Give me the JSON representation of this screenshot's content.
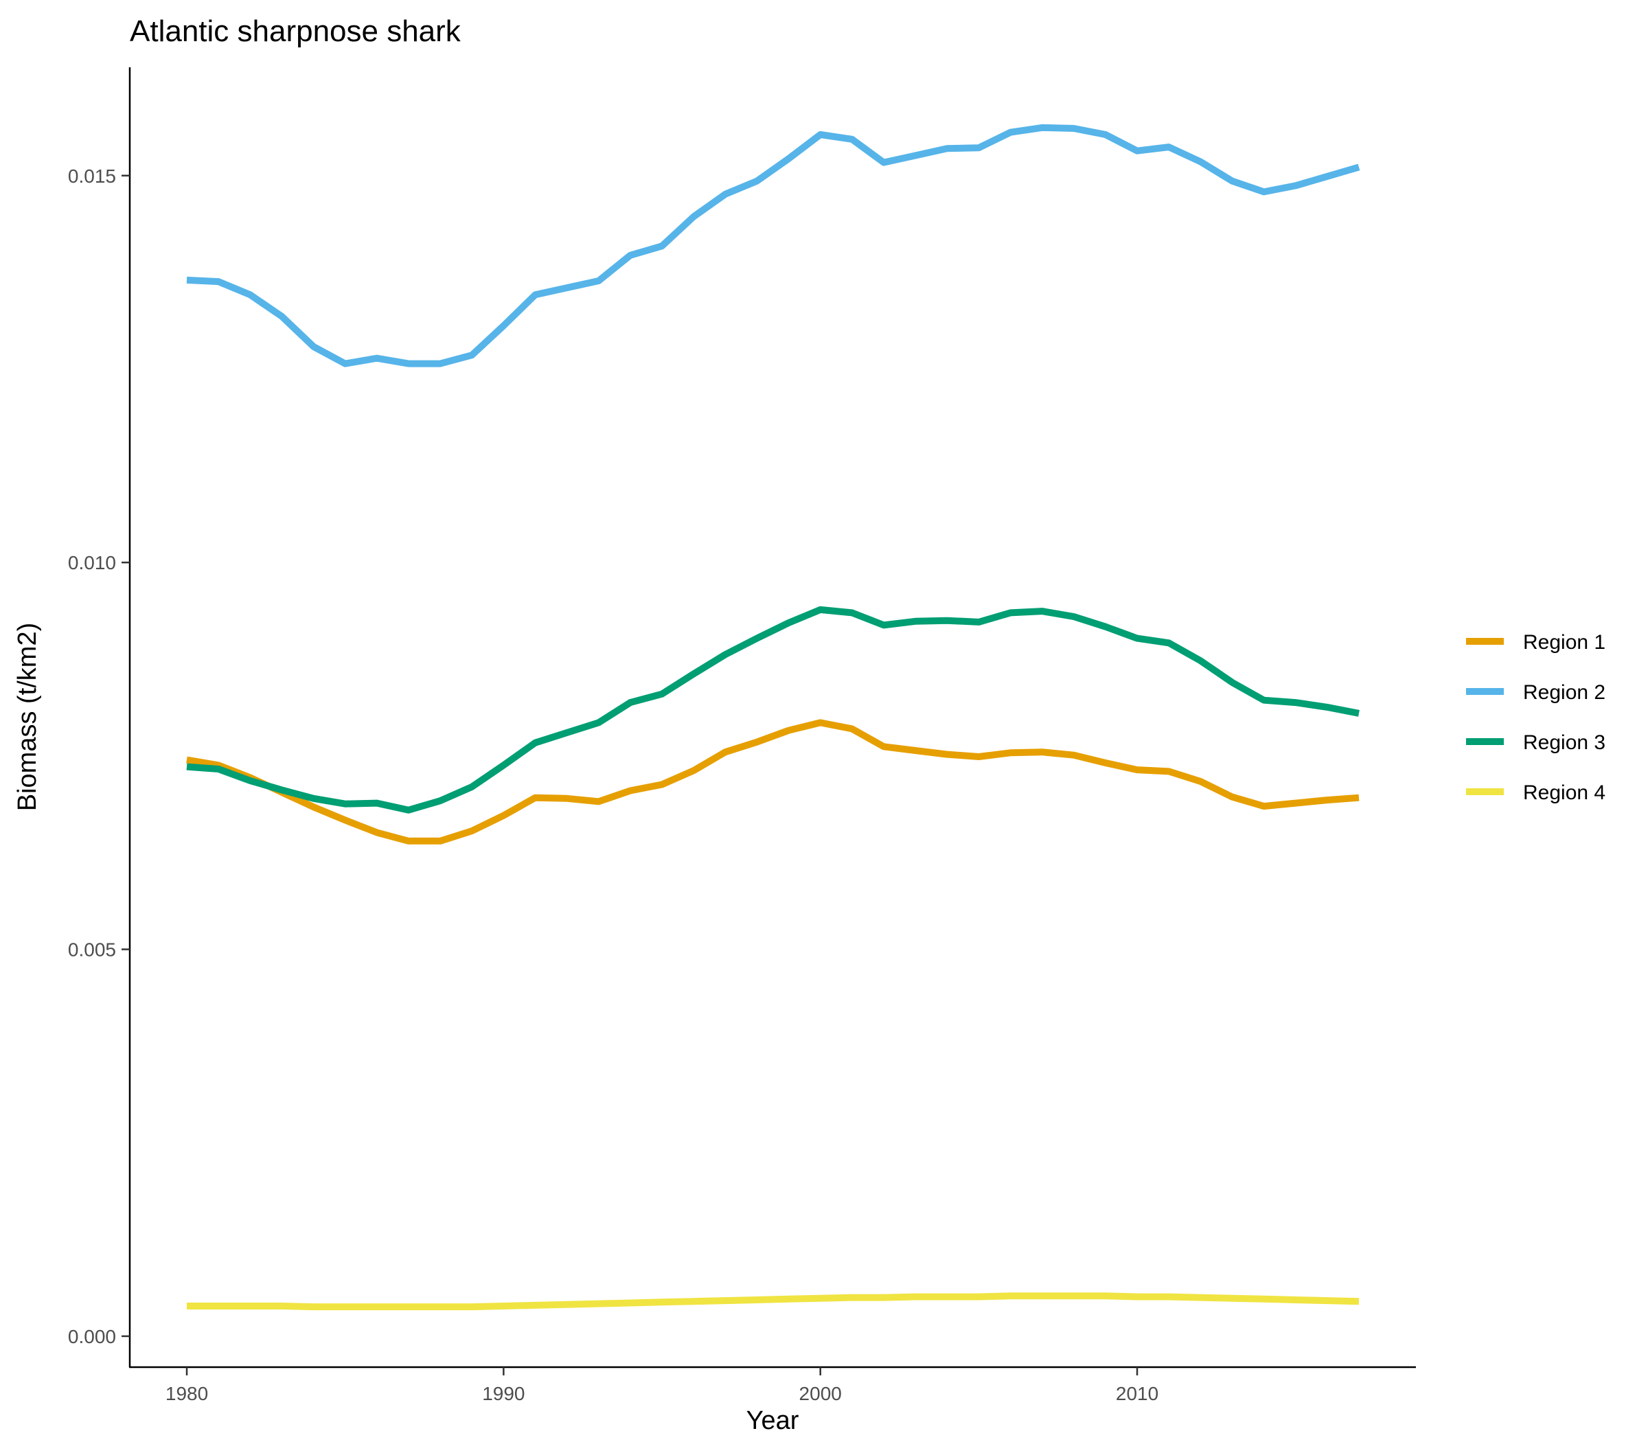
{
  "chart_data": {
    "type": "line",
    "title": "Atlantic sharpnose shark",
    "xlabel": "Year",
    "ylabel": "Biomass (t/km2)",
    "xlim": [
      1978.2,
      2018.8
    ],
    "ylim": [
      -0.0004,
      0.0164
    ],
    "x_ticks": [
      1980,
      1990,
      2000,
      2010
    ],
    "x_tick_labels": [
      "1980",
      "1990",
      "2000",
      "2010"
    ],
    "y_ticks": [
      0,
      0.005,
      0.01,
      0.015
    ],
    "y_tick_labels": [
      "0.000",
      "0.005",
      "0.010",
      "0.015"
    ],
    "grid": false,
    "legend_position": "right",
    "x": [
      1980,
      1981,
      1982,
      1983,
      1984,
      1985,
      1986,
      1987,
      1988,
      1989,
      1990,
      1991,
      1992,
      1993,
      1994,
      1995,
      1996,
      1997,
      1998,
      1999,
      2000,
      2001,
      2002,
      2003,
      2004,
      2005,
      2006,
      2007,
      2008,
      2009,
      2010,
      2011,
      2012,
      2013,
      2014,
      2015,
      2016,
      2017
    ],
    "series": [
      {
        "name": "Region 1",
        "color": "#E69F00",
        "values": [
          0.00745,
          0.00738,
          0.00722,
          0.00703,
          0.00684,
          0.00667,
          0.00651,
          0.0064,
          0.0064,
          0.00653,
          0.00673,
          0.00696,
          0.00695,
          0.00691,
          0.00705,
          0.00713,
          0.00731,
          0.00755,
          0.00768,
          0.00783,
          0.00793,
          0.00785,
          0.00762,
          0.00757,
          0.00752,
          0.00749,
          0.00754,
          0.00755,
          0.00751,
          0.00741,
          0.00732,
          0.0073,
          0.00717,
          0.00697,
          0.00685,
          0.00689,
          0.00693,
          0.00696
        ]
      },
      {
        "name": "Region 2",
        "color": "#56B4E9",
        "values": [
          0.01365,
          0.01363,
          0.01346,
          0.01318,
          0.01279,
          0.01257,
          0.01264,
          0.01257,
          0.01257,
          0.01268,
          0.01306,
          0.01346,
          0.01355,
          0.01364,
          0.01397,
          0.01409,
          0.01447,
          0.01476,
          0.01493,
          0.01522,
          0.01553,
          0.01547,
          0.01517,
          0.01526,
          0.01535,
          0.01536,
          0.01556,
          0.01562,
          0.01561,
          0.01553,
          0.01532,
          0.01537,
          0.01518,
          0.01493,
          0.01479,
          0.01487,
          0.01499,
          0.01511
        ]
      },
      {
        "name": "Region 3",
        "color": "#009E73",
        "values": [
          0.00736,
          0.00733,
          0.00718,
          0.00706,
          0.00695,
          0.00688,
          0.00689,
          0.0068,
          0.00692,
          0.0071,
          0.00738,
          0.00767,
          0.0078,
          0.00793,
          0.00819,
          0.0083,
          0.00856,
          0.00881,
          0.00902,
          0.00922,
          0.00939,
          0.00935,
          0.00919,
          0.00924,
          0.00925,
          0.00923,
          0.00935,
          0.00937,
          0.0093,
          0.00917,
          0.00902,
          0.00896,
          0.00873,
          0.00845,
          0.00822,
          0.00819,
          0.00813,
          0.00805
        ]
      },
      {
        "name": "Region 4",
        "color": "#F0E442",
        "values": [
          0.00039,
          0.00039,
          0.00039,
          0.00039,
          0.00038,
          0.00038,
          0.00038,
          0.00038,
          0.00038,
          0.00038,
          0.00039,
          0.0004,
          0.00041,
          0.00042,
          0.00043,
          0.00044,
          0.00045,
          0.00046,
          0.00047,
          0.00048,
          0.00049,
          0.0005,
          0.0005,
          0.00051,
          0.00051,
          0.00051,
          0.00052,
          0.00052,
          0.00052,
          0.00052,
          0.00051,
          0.00051,
          0.0005,
          0.00049,
          0.00048,
          0.00047,
          0.00046,
          0.00045
        ]
      }
    ]
  }
}
